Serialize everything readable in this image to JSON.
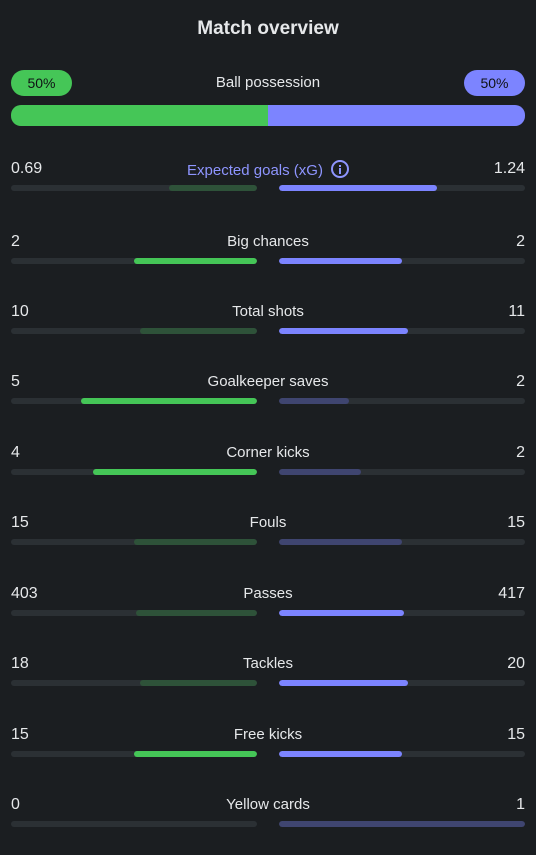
{
  "header": {
    "title": "Match overview"
  },
  "possession": {
    "label": "Ball possession",
    "home_text": "50%",
    "away_text": "50%",
    "home_fraction": 0.5,
    "away_fraction": 0.5
  },
  "colors": {
    "home_strong": "#45c657",
    "home_weak": "#2e5239",
    "away_strong": "#7c84ff",
    "away_weak": "#3f4570",
    "accent_label": "#8e95ff"
  },
  "stats": [
    {
      "label": "Expected goals (xG)",
      "home": "0.69",
      "away": "1.24",
      "home_fraction": 0.357,
      "away_fraction": 0.643,
      "leader": "away",
      "info_icon": true
    },
    {
      "label": "Big chances",
      "home": "2",
      "away": "2",
      "home_fraction": 0.5,
      "away_fraction": 0.5,
      "leader": "both"
    },
    {
      "label": "Total shots",
      "home": "10",
      "away": "11",
      "home_fraction": 0.476,
      "away_fraction": 0.524,
      "leader": "away"
    },
    {
      "label": "Goalkeeper saves",
      "home": "5",
      "away": "2",
      "home_fraction": 0.714,
      "away_fraction": 0.286,
      "leader": "home"
    },
    {
      "label": "Corner kicks",
      "home": "4",
      "away": "2",
      "home_fraction": 0.667,
      "away_fraction": 0.333,
      "leader": "home"
    },
    {
      "label": "Fouls",
      "home": "15",
      "away": "15",
      "home_fraction": 0.5,
      "away_fraction": 0.5,
      "leader": "none"
    },
    {
      "label": "Passes",
      "home": "403",
      "away": "417",
      "home_fraction": 0.491,
      "away_fraction": 0.509,
      "leader": "away"
    },
    {
      "label": "Tackles",
      "home": "18",
      "away": "20",
      "home_fraction": 0.474,
      "away_fraction": 0.526,
      "leader": "away"
    },
    {
      "label": "Free kicks",
      "home": "15",
      "away": "15",
      "home_fraction": 0.5,
      "away_fraction": 0.5,
      "leader": "both"
    },
    {
      "label": "Yellow cards",
      "home": "0",
      "away": "1",
      "home_fraction": 0.0,
      "away_fraction": 1.0,
      "leader": "none"
    }
  ]
}
